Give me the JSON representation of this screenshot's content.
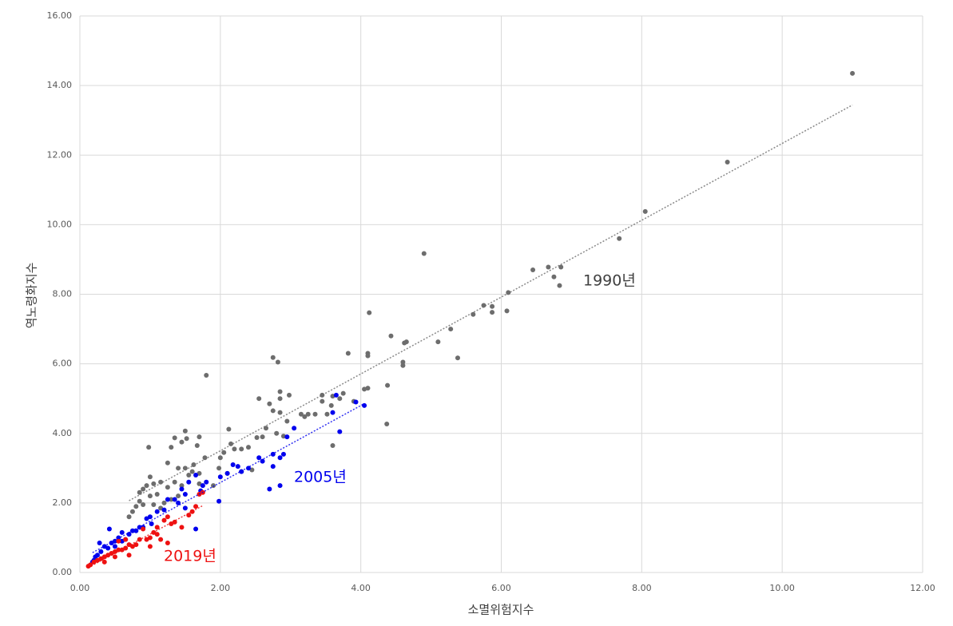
{
  "chart_data": {
    "type": "scatter",
    "x_label": "소멸위험지수",
    "y_label": "역노령화지수",
    "xlim": [
      0,
      12
    ],
    "ylim": [
      0,
      16
    ],
    "xticks": [
      {
        "value": 0,
        "label": "0.00"
      },
      {
        "value": 2,
        "label": "2.00"
      },
      {
        "value": 4,
        "label": "4.00"
      },
      {
        "value": 6,
        "label": "6.00"
      },
      {
        "value": 8,
        "label": "8.00"
      },
      {
        "value": 10,
        "label": "10.00"
      },
      {
        "value": 12,
        "label": "12.00"
      }
    ],
    "yticks": [
      {
        "value": 0,
        "label": "0.00"
      },
      {
        "value": 2,
        "label": "2.00"
      },
      {
        "value": 4,
        "label": "4.00"
      },
      {
        "value": 6,
        "label": "6.00"
      },
      {
        "value": 8,
        "label": "8.00"
      },
      {
        "value": 10,
        "label": "10.00"
      },
      {
        "value": 12,
        "label": "12.00"
      },
      {
        "value": 14,
        "label": "14.00"
      },
      {
        "value": 16,
        "label": "16.00"
      }
    ],
    "grid": true,
    "trendline": true,
    "series": [
      {
        "name": "1990년",
        "color": "#6d6d6d",
        "x": [
          11.0,
          9.22,
          8.05,
          7.68,
          6.85,
          6.67,
          6.45,
          6.75,
          6.83,
          6.1,
          6.08,
          5.87,
          5.87,
          5.75,
          5.6,
          5.38,
          5.28,
          5.1,
          4.9,
          4.65,
          4.62,
          4.6,
          4.6,
          4.43,
          4.38,
          4.37,
          4.12,
          4.1,
          4.1,
          4.1,
          4.05,
          3.82,
          3.9,
          3.75,
          3.7,
          3.6,
          3.58,
          3.6,
          3.52,
          3.45,
          3.45,
          3.35,
          3.25,
          3.2,
          3.15,
          2.98,
          2.85,
          2.85,
          2.75,
          2.82,
          2.55,
          2.7,
          2.75,
          2.85,
          2.95,
          2.9,
          2.8,
          2.65,
          2.6,
          2.52,
          2.4,
          2.3,
          2.2,
          2.12,
          2.15,
          2.05,
          2.0,
          1.98,
          2.1,
          2.3,
          2.45,
          1.8,
          1.78,
          1.7,
          1.67,
          1.62,
          1.5,
          1.52,
          1.45,
          1.35,
          1.3,
          1.25,
          1.4,
          1.5,
          1.6,
          1.7,
          1.55,
          1.45,
          1.35,
          1.25,
          1.15,
          1.05,
          0.98,
          1.0,
          0.95,
          0.9,
          0.85,
          0.85,
          0.8,
          0.75,
          0.9,
          1.0,
          1.1,
          1.2,
          1.3,
          0.7,
          1.05,
          1.15,
          1.4,
          1.7,
          1.9
        ],
        "values": [
          14.35,
          11.8,
          10.38,
          9.6,
          8.78,
          8.78,
          8.7,
          8.5,
          8.25,
          8.05,
          7.52,
          7.65,
          7.48,
          7.68,
          7.42,
          6.17,
          7.0,
          6.63,
          9.17,
          6.63,
          6.6,
          6.05,
          5.95,
          6.8,
          5.38,
          4.27,
          7.47,
          6.3,
          6.23,
          5.3,
          5.27,
          6.3,
          4.92,
          5.15,
          5.0,
          5.07,
          4.8,
          3.65,
          4.55,
          5.1,
          4.92,
          4.55,
          4.55,
          4.48,
          4.55,
          5.1,
          5.2,
          5.0,
          6.18,
          6.05,
          5.0,
          4.85,
          4.65,
          4.6,
          4.35,
          3.92,
          4.0,
          4.15,
          3.9,
          3.88,
          3.6,
          3.55,
          3.55,
          4.12,
          3.7,
          3.45,
          3.3,
          3.0,
          2.85,
          2.9,
          2.95,
          5.67,
          3.3,
          3.9,
          3.65,
          3.1,
          4.07,
          3.85,
          3.75,
          3.87,
          3.6,
          3.15,
          3.0,
          3.0,
          2.9,
          2.85,
          2.8,
          2.5,
          2.6,
          2.45,
          2.6,
          2.55,
          3.6,
          2.75,
          2.5,
          2.4,
          2.3,
          2.05,
          1.9,
          1.75,
          1.95,
          2.2,
          2.25,
          2.0,
          2.1,
          1.6,
          1.95,
          1.85,
          2.2,
          2.55,
          2.5
        ]
      },
      {
        "name": "2005년",
        "color": "#0000ee",
        "x": [
          4.05,
          3.93,
          3.7,
          3.65,
          3.6,
          3.05,
          2.95,
          2.9,
          2.85,
          2.75,
          2.75,
          2.6,
          2.85,
          2.7,
          2.55,
          2.4,
          2.3,
          2.25,
          2.18,
          2.1,
          2.0,
          1.98,
          1.8,
          1.75,
          1.72,
          1.65,
          1.55,
          1.5,
          1.45,
          1.4,
          1.35,
          1.25,
          1.2,
          1.65,
          1.5,
          1.1,
          1.0,
          0.95,
          0.9,
          0.85,
          0.8,
          0.75,
          0.7,
          0.65,
          0.6,
          0.55,
          0.5,
          0.45,
          0.42,
          0.4,
          0.35,
          0.3,
          0.28,
          0.25,
          0.22,
          0.2,
          0.18,
          0.6,
          1.02,
          0.5
        ],
        "values": [
          4.8,
          4.9,
          4.05,
          5.1,
          4.6,
          4.15,
          3.9,
          3.4,
          3.3,
          3.4,
          3.05,
          3.2,
          2.5,
          2.4,
          3.3,
          3.0,
          2.9,
          3.05,
          3.1,
          2.85,
          2.75,
          2.05,
          2.6,
          2.5,
          2.35,
          2.8,
          2.6,
          2.25,
          2.4,
          2.0,
          2.1,
          2.1,
          1.8,
          1.25,
          1.85,
          1.75,
          1.6,
          1.55,
          1.3,
          1.3,
          1.2,
          1.2,
          1.1,
          0.95,
          0.9,
          1.0,
          0.9,
          0.85,
          1.25,
          0.7,
          0.75,
          0.6,
          0.85,
          0.5,
          0.45,
          0.35,
          0.3,
          1.15,
          1.4,
          0.75
        ]
      },
      {
        "name": "2019년",
        "color": "#ee1111",
        "x": [
          1.75,
          1.7,
          1.65,
          1.6,
          1.55,
          1.45,
          1.35,
          1.3,
          1.25,
          1.2,
          1.1,
          1.05,
          1.0,
          0.95,
          0.9,
          0.85,
          0.8,
          1.15,
          1.25,
          0.75,
          0.7,
          0.65,
          0.6,
          0.55,
          0.5,
          0.45,
          0.4,
          0.35,
          0.3,
          0.25,
          0.2,
          0.15,
          0.12,
          0.55,
          0.65,
          0.5,
          0.35,
          0.7,
          1.1,
          1.0
        ],
        "values": [
          2.3,
          2.25,
          1.9,
          1.75,
          1.65,
          1.3,
          1.45,
          1.4,
          1.6,
          1.5,
          1.3,
          1.15,
          1.0,
          0.95,
          1.25,
          0.95,
          0.8,
          0.95,
          0.85,
          0.75,
          0.8,
          0.7,
          0.65,
          0.65,
          0.6,
          0.55,
          0.5,
          0.45,
          0.4,
          0.35,
          0.3,
          0.22,
          0.18,
          0.9,
          0.95,
          0.45,
          0.3,
          0.5,
          1.1,
          0.75
        ]
      }
    ]
  }
}
